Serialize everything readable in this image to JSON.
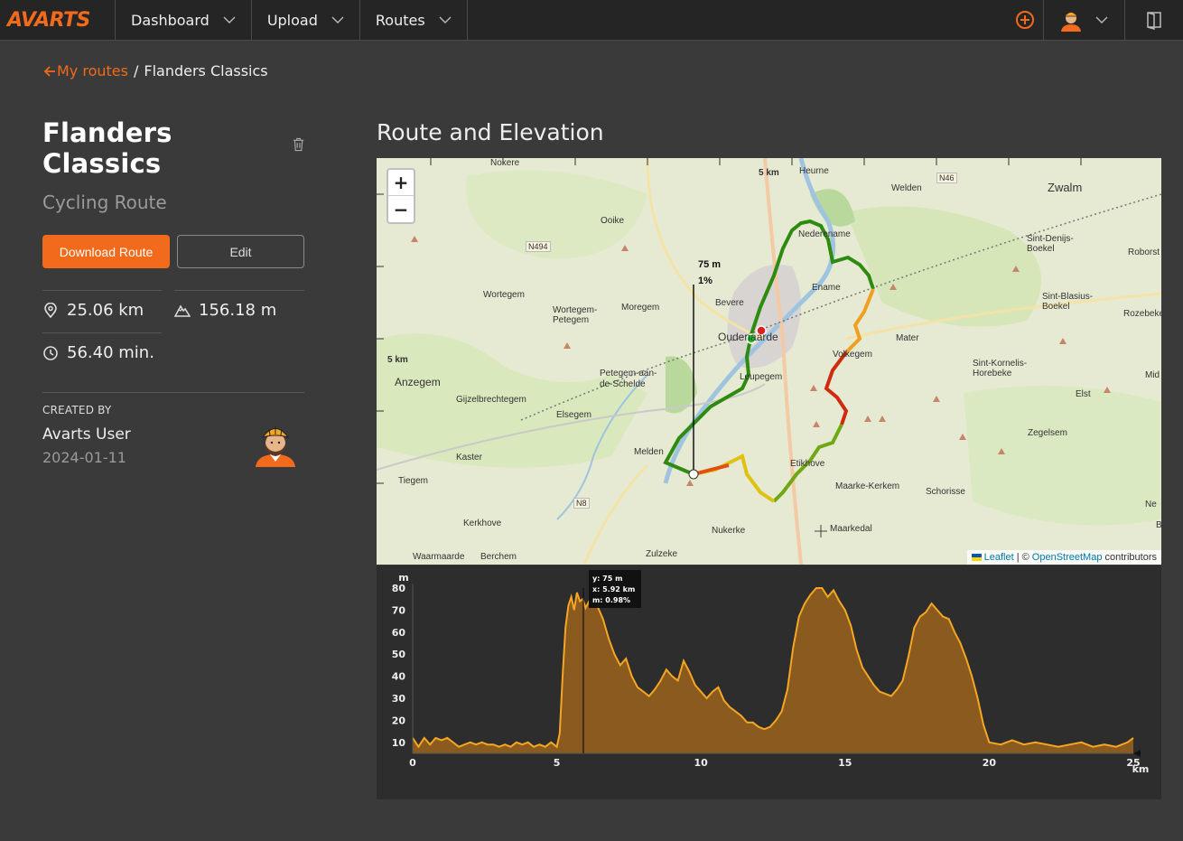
{
  "nav": {
    "logo": "AVARTS",
    "items": [
      {
        "label": "Dashboard"
      },
      {
        "label": "Upload"
      },
      {
        "label": "Routes"
      }
    ]
  },
  "breadcrumb": {
    "back_label": "My routes",
    "separator": "/",
    "current": "Flanders Classics"
  },
  "route": {
    "title": "Flanders Classics",
    "type": "Cycling Route",
    "download_label": "Download Route",
    "edit_label": "Edit",
    "distance": "25.06 km",
    "elevation_gain": "156.18 m",
    "duration": "56.40 min."
  },
  "creator": {
    "label": "CREATED BY",
    "name": "Avarts User",
    "date": "2024-01-11"
  },
  "section_title": "Route and Elevation",
  "map": {
    "places": [
      {
        "name": "Nokere"
      },
      {
        "name": "Heurne"
      },
      {
        "name": "Welden"
      },
      {
        "name": "Zwalm"
      },
      {
        "name": "Ooike"
      },
      {
        "name": "Nederename"
      },
      {
        "name": "Sint-Denijs-Boekel"
      },
      {
        "name": "Wortegem"
      },
      {
        "name": "Wortegem-Petegem"
      },
      {
        "name": "Moregem"
      },
      {
        "name": "Bevere"
      },
      {
        "name": "Oudenaarde"
      },
      {
        "name": "Ename"
      },
      {
        "name": "Mater"
      },
      {
        "name": "Sint-Blasius-Boekel"
      },
      {
        "name": "Anzegem"
      },
      {
        "name": "Gijzelbrechtegem"
      },
      {
        "name": "Petegem-aan-de-Schelde"
      },
      {
        "name": "Leupegem"
      },
      {
        "name": "Volkegem"
      },
      {
        "name": "Sint-Kornelis-Horebeke"
      },
      {
        "name": "Elst"
      },
      {
        "name": "Elsegem"
      },
      {
        "name": "Kaster"
      },
      {
        "name": "Melden"
      },
      {
        "name": "Etikhove"
      },
      {
        "name": "Zegelsem"
      },
      {
        "name": "Tiegem"
      },
      {
        "name": "Maarke-Kerkem"
      },
      {
        "name": "Schorisse"
      },
      {
        "name": "Kerkhove"
      },
      {
        "name": "Nukerke"
      },
      {
        "name": "Maarkedal"
      },
      {
        "name": "Waarmaarde"
      },
      {
        "name": "Berchem"
      },
      {
        "name": "Zulzeke"
      },
      {
        "name": "Roborst"
      },
      {
        "name": "Rozebeke"
      },
      {
        "name": "Mid"
      },
      {
        "name": "Ne"
      },
      {
        "name": "B"
      }
    ],
    "roads": [
      "N494",
      "N46",
      "N8"
    ],
    "scale_top": "5 km",
    "scale_left": "5 km",
    "marker_elev": "75 m",
    "marker_grade": "1%",
    "zoom_in": "+",
    "zoom_out": "−",
    "attribution": {
      "leaflet": "Leaflet",
      "sep": "| ©",
      "osm": "OpenStreetMap",
      "suffix": "contributors"
    }
  },
  "chart_data": {
    "type": "area",
    "ylabel": "m",
    "xlabel": "km",
    "xlim": [
      0,
      25
    ],
    "ylim": [
      5,
      80
    ],
    "x_ticks": [
      0,
      5,
      10,
      15,
      20,
      25
    ],
    "y_ticks": [
      10,
      20,
      30,
      40,
      50,
      60,
      70,
      80
    ],
    "tooltip": {
      "y": "y: 75 m",
      "x": "x: 5.92 km",
      "m": "m: 0.98%"
    },
    "cursor_x": 5.92,
    "x": [
      0,
      0.2,
      0.4,
      0.6,
      0.8,
      1.0,
      1.2,
      1.4,
      1.6,
      1.8,
      2.0,
      2.2,
      2.4,
      2.6,
      2.8,
      3.0,
      3.2,
      3.4,
      3.6,
      3.8,
      4.0,
      4.2,
      4.4,
      4.6,
      4.8,
      5.0,
      5.1,
      5.2,
      5.3,
      5.4,
      5.5,
      5.6,
      5.7,
      5.8,
      5.9,
      6.0,
      6.2,
      6.4,
      6.6,
      6.8,
      7.0,
      7.2,
      7.4,
      7.6,
      7.8,
      8.0,
      8.2,
      8.4,
      8.6,
      8.8,
      9.0,
      9.2,
      9.4,
      9.6,
      9.8,
      10.0,
      10.2,
      10.4,
      10.6,
      10.8,
      11.0,
      11.2,
      11.4,
      11.6,
      11.8,
      12.0,
      12.2,
      12.4,
      12.6,
      12.8,
      13.0,
      13.2,
      13.4,
      13.6,
      13.8,
      14.0,
      14.2,
      14.4,
      14.6,
      14.8,
      15.0,
      15.2,
      15.4,
      15.6,
      15.8,
      16.0,
      16.2,
      16.4,
      16.6,
      16.8,
      17.0,
      17.2,
      17.4,
      17.6,
      17.8,
      18.0,
      18.2,
      18.4,
      18.6,
      18.8,
      19.0,
      19.2,
      19.4,
      19.6,
      19.8,
      20.0,
      20.4,
      20.8,
      21.2,
      21.6,
      22.0,
      22.4,
      22.8,
      23.2,
      23.6,
      24.0,
      24.4,
      24.8,
      25.0
    ],
    "series": [
      {
        "values": [
          12,
          8,
          12,
          9,
          12,
          11,
          12,
          10,
          8,
          9,
          10,
          9,
          10,
          9,
          9,
          8,
          9,
          8,
          10,
          9,
          10,
          8,
          9,
          8,
          10,
          8,
          14,
          40,
          62,
          72,
          76,
          70,
          78,
          74,
          75,
          71,
          76,
          72,
          66,
          57,
          50,
          45,
          48,
          40,
          35,
          33,
          31,
          34,
          38,
          43,
          40,
          38,
          47,
          42,
          36,
          33,
          30,
          33,
          35,
          29,
          26,
          24,
          22,
          19,
          19,
          17,
          16,
          17,
          20,
          24,
          34,
          53,
          67,
          73,
          77,
          80,
          80,
          76,
          79,
          74,
          70,
          63,
          52,
          44,
          40,
          36,
          33,
          32,
          31,
          34,
          38,
          49,
          62,
          67,
          69,
          73,
          70,
          67,
          66,
          60,
          55,
          48,
          40,
          30,
          18,
          10,
          9,
          11,
          9,
          10,
          9,
          8,
          9,
          10,
          8,
          9,
          8,
          10,
          12
        ]
      }
    ]
  }
}
